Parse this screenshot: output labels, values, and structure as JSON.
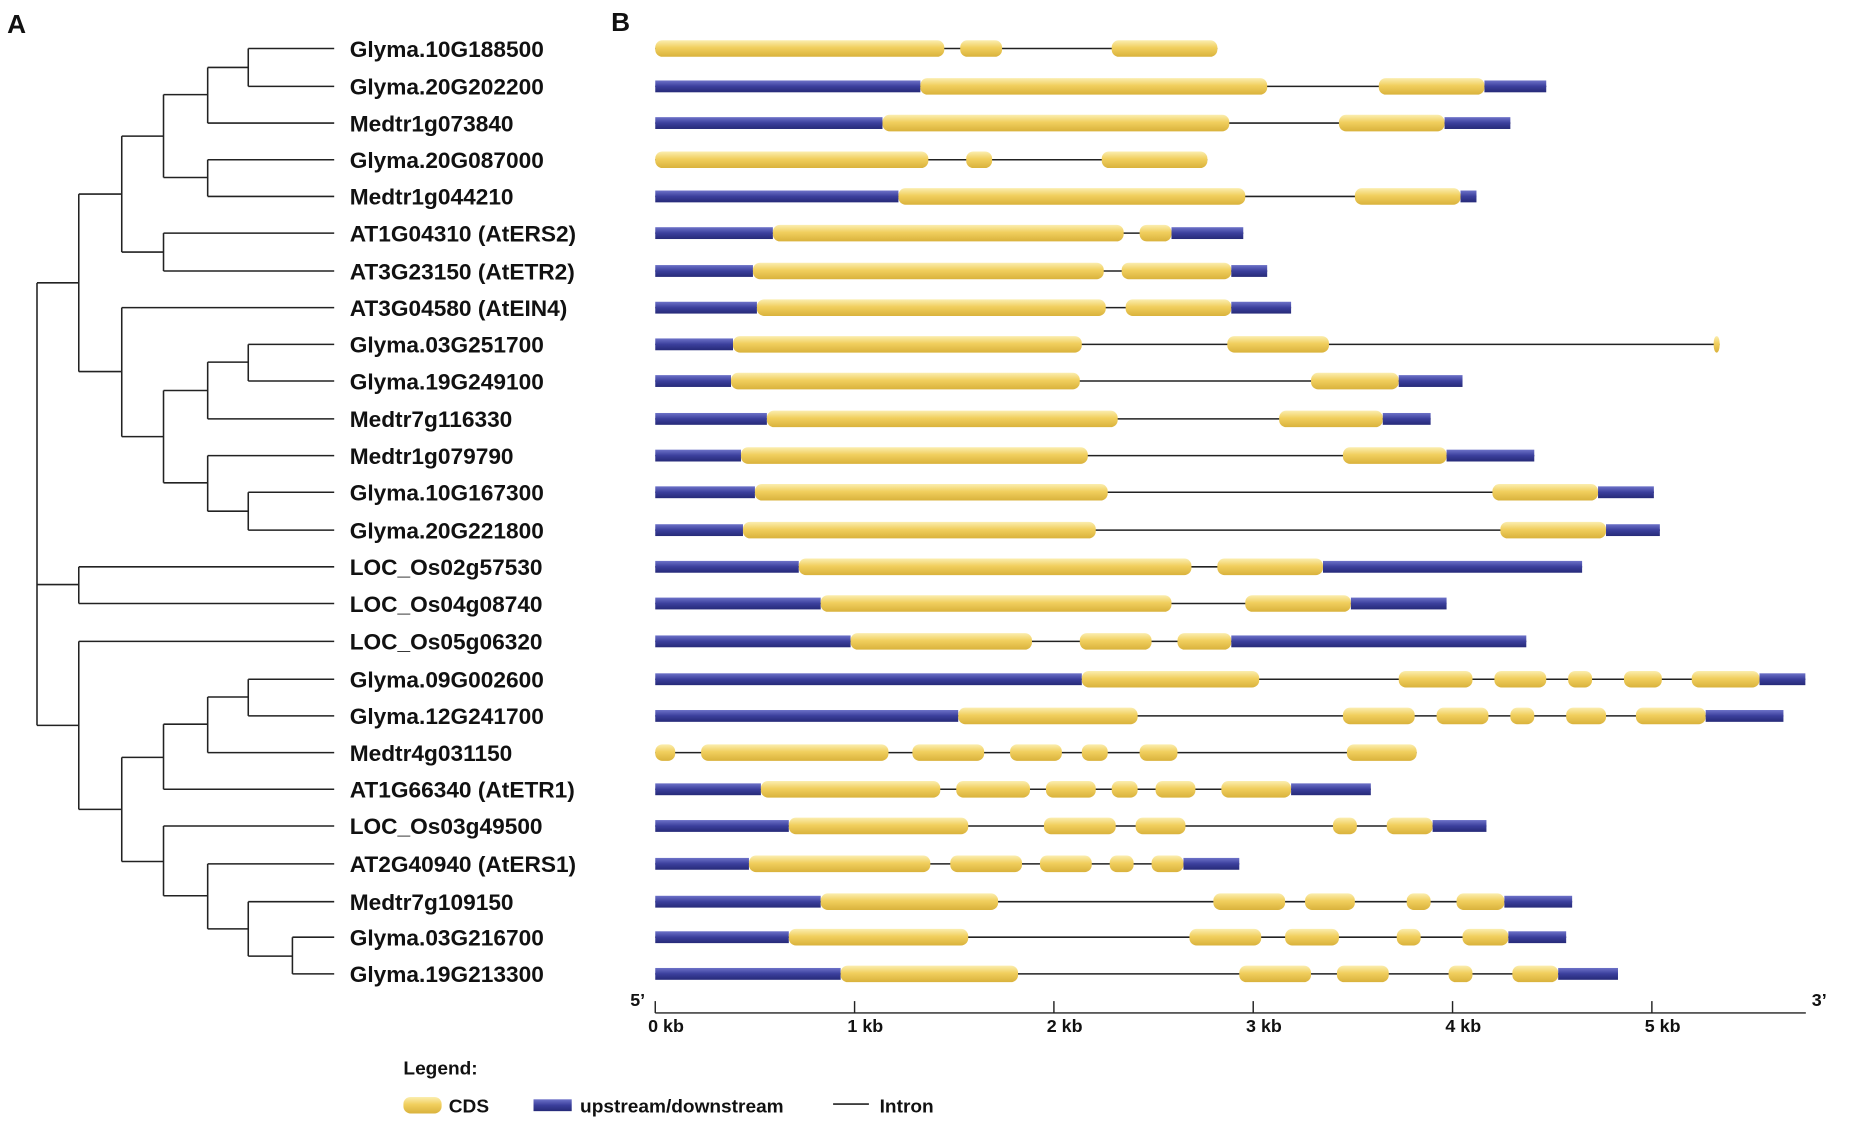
{
  "panels": {
    "a": "A",
    "b": "B"
  },
  "colors": {
    "cds": "#f1cf5e",
    "utr": "#3b3f9c",
    "intron": "#222222",
    "tree": "#222222"
  },
  "axis": {
    "five_prime": "5’",
    "three_prime": "3’",
    "max_kb": 5.77,
    "ticks": [
      {
        "value": 0,
        "label": "0 kb"
      },
      {
        "value": 1,
        "label": "1 kb"
      },
      {
        "value": 2,
        "label": "2 kb"
      },
      {
        "value": 3,
        "label": "3 kb"
      },
      {
        "value": 4,
        "label": "4 kb"
      },
      {
        "value": 5,
        "label": "5 kb"
      }
    ]
  },
  "legend": {
    "title": "Legend:",
    "cds": "CDS",
    "utr": "upstream/downstream",
    "intron": "Intron"
  },
  "genes": [
    {
      "name": "Glyma.10G188500",
      "segments": [
        [
          "C",
          0,
          1.45
        ],
        [
          "C",
          1.53,
          1.74
        ],
        [
          "C",
          2.29,
          2.82
        ]
      ]
    },
    {
      "name": "Glyma.20G202200",
      "segments": [
        [
          "U",
          0,
          1.33
        ],
        [
          "C",
          1.33,
          3.07
        ],
        [
          "C",
          3.63,
          4.16
        ],
        [
          "U",
          4.16,
          4.47
        ]
      ]
    },
    {
      "name": "Medtr1g073840",
      "segments": [
        [
          "U",
          0,
          1.14
        ],
        [
          "C",
          1.14,
          2.88
        ],
        [
          "C",
          3.43,
          3.96
        ],
        [
          "U",
          3.96,
          4.29
        ]
      ]
    },
    {
      "name": "Glyma.20G087000",
      "segments": [
        [
          "C",
          0,
          1.37
        ],
        [
          "C",
          1.56,
          1.69
        ],
        [
          "C",
          2.24,
          2.77
        ]
      ]
    },
    {
      "name": "Medtr1g044210",
      "segments": [
        [
          "U",
          0,
          1.22
        ],
        [
          "C",
          1.22,
          2.96
        ],
        [
          "C",
          3.51,
          4.04
        ],
        [
          "U",
          4.04,
          4.12
        ]
      ]
    },
    {
      "name": "AT1G04310  (AtERS2)",
      "segments": [
        [
          "U",
          0,
          0.59
        ],
        [
          "C",
          0.59,
          2.35
        ],
        [
          "C",
          2.43,
          2.59
        ],
        [
          "U",
          2.59,
          2.95
        ]
      ]
    },
    {
      "name": "AT3G23150  (AtETR2)",
      "segments": [
        [
          "U",
          0,
          0.49
        ],
        [
          "C",
          0.49,
          2.25
        ],
        [
          "C",
          2.34,
          2.89
        ],
        [
          "U",
          2.89,
          3.07
        ]
      ]
    },
    {
      "name": "AT3G04580  (AtEIN4)",
      "segments": [
        [
          "U",
          0,
          0.51
        ],
        [
          "C",
          0.51,
          2.26
        ],
        [
          "C",
          2.36,
          2.89
        ],
        [
          "U",
          2.89,
          3.19
        ]
      ]
    },
    {
      "name": "Glyma.03G251700",
      "segments": [
        [
          "U",
          0,
          0.39
        ],
        [
          "C",
          0.39,
          2.14
        ],
        [
          "C",
          2.87,
          3.38
        ],
        [
          "C",
          5.31,
          5.34
        ]
      ]
    },
    {
      "name": "Glyma.19G249100",
      "segments": [
        [
          "U",
          0,
          0.38
        ],
        [
          "C",
          0.38,
          2.13
        ],
        [
          "C",
          3.29,
          3.73
        ],
        [
          "U",
          3.73,
          4.05
        ]
      ]
    },
    {
      "name": "Medtr7g116330",
      "segments": [
        [
          "U",
          0,
          0.56
        ],
        [
          "C",
          0.56,
          2.32
        ],
        [
          "C",
          3.13,
          3.65
        ],
        [
          "U",
          3.65,
          3.89
        ]
      ]
    },
    {
      "name": "Medtr1g079790",
      "segments": [
        [
          "U",
          0,
          0.43
        ],
        [
          "C",
          0.43,
          2.17
        ],
        [
          "C",
          3.45,
          3.97
        ],
        [
          "U",
          3.97,
          4.41
        ]
      ]
    },
    {
      "name": "Glyma.10G167300",
      "segments": [
        [
          "U",
          0,
          0.5
        ],
        [
          "C",
          0.5,
          2.27
        ],
        [
          "C",
          4.2,
          4.73
        ],
        [
          "U",
          4.73,
          5.01
        ]
      ]
    },
    {
      "name": "Glyma.20G221800",
      "segments": [
        [
          "U",
          0,
          0.44
        ],
        [
          "C",
          0.44,
          2.21
        ],
        [
          "C",
          4.24,
          4.77
        ],
        [
          "U",
          4.77,
          5.04
        ]
      ]
    },
    {
      "name": "LOC_Os02g57530",
      "segments": [
        [
          "U",
          0,
          0.72
        ],
        [
          "C",
          0.72,
          2.69
        ],
        [
          "C",
          2.82,
          3.35
        ],
        [
          "U",
          3.35,
          4.65
        ]
      ]
    },
    {
      "name": "LOC_Os04g08740",
      "segments": [
        [
          "U",
          0,
          0.83
        ],
        [
          "C",
          0.83,
          2.59
        ],
        [
          "C",
          2.96,
          3.49
        ],
        [
          "U",
          3.49,
          3.97
        ]
      ]
    },
    {
      "name": "LOC_Os05g06320",
      "segments": [
        [
          "U",
          0,
          0.98
        ],
        [
          "C",
          0.98,
          1.89
        ],
        [
          "C",
          2.13,
          2.49
        ],
        [
          "C",
          2.62,
          2.89
        ],
        [
          "U",
          2.89,
          4.37
        ]
      ]
    },
    {
      "name": "Glyma.09G002600",
      "segments": [
        [
          "U",
          0,
          2.14
        ],
        [
          "C",
          2.14,
          3.03
        ],
        [
          "C",
          3.73,
          4.1
        ],
        [
          "C",
          4.21,
          4.47
        ],
        [
          "C",
          4.58,
          4.7
        ],
        [
          "C",
          4.86,
          5.05
        ],
        [
          "C",
          5.2,
          5.54
        ],
        [
          "U",
          5.54,
          5.77
        ]
      ]
    },
    {
      "name": "Glyma.12G241700",
      "segments": [
        [
          "U",
          0,
          1.52
        ],
        [
          "C",
          1.52,
          2.42
        ],
        [
          "C",
          3.45,
          3.81
        ],
        [
          "C",
          3.92,
          4.18
        ],
        [
          "C",
          4.29,
          4.41
        ],
        [
          "C",
          4.57,
          4.77
        ],
        [
          "C",
          4.92,
          5.27
        ],
        [
          "U",
          5.27,
          5.66
        ]
      ]
    },
    {
      "name": "Medtr4g031150",
      "segments": [
        [
          "C",
          0,
          0.1
        ],
        [
          "C",
          0.23,
          1.17
        ],
        [
          "C",
          1.29,
          1.65
        ],
        [
          "C",
          1.78,
          2.04
        ],
        [
          "C",
          2.14,
          2.27
        ],
        [
          "C",
          2.43,
          2.62
        ],
        [
          "C",
          3.47,
          3.82
        ]
      ]
    },
    {
      "name": "AT1G66340  (AtETR1)",
      "segments": [
        [
          "U",
          0,
          0.53
        ],
        [
          "C",
          0.53,
          1.43
        ],
        [
          "C",
          1.51,
          1.88
        ],
        [
          "C",
          1.96,
          2.21
        ],
        [
          "C",
          2.29,
          2.42
        ],
        [
          "C",
          2.51,
          2.71
        ],
        [
          "C",
          2.84,
          3.19
        ],
        [
          "U",
          3.19,
          3.59
        ]
      ]
    },
    {
      "name": "LOC_Os03g49500",
      "segments": [
        [
          "U",
          0,
          0.67
        ],
        [
          "C",
          0.67,
          1.57
        ],
        [
          "C",
          1.95,
          2.31
        ],
        [
          "C",
          2.41,
          2.66
        ],
        [
          "C",
          3.4,
          3.52
        ],
        [
          "C",
          3.67,
          3.9
        ],
        [
          "U",
          3.9,
          4.17
        ]
      ]
    },
    {
      "name": "AT2G40940  (AtERS1)",
      "segments": [
        [
          "U",
          0,
          0.47
        ],
        [
          "C",
          0.47,
          1.38
        ],
        [
          "C",
          1.48,
          1.84
        ],
        [
          "C",
          1.93,
          2.19
        ],
        [
          "C",
          2.28,
          2.4
        ],
        [
          "C",
          2.49,
          2.65
        ],
        [
          "U",
          2.65,
          2.93
        ]
      ]
    },
    {
      "name": "Medtr7g109150",
      "segments": [
        [
          "U",
          0,
          0.83
        ],
        [
          "C",
          0.83,
          1.72
        ],
        [
          "C",
          2.8,
          3.16
        ],
        [
          "C",
          3.26,
          3.51
        ],
        [
          "C",
          3.77,
          3.89
        ],
        [
          "C",
          4.02,
          4.26
        ],
        [
          "U",
          4.26,
          4.6
        ]
      ]
    },
    {
      "name": "Glyma.03G216700",
      "segments": [
        [
          "U",
          0,
          0.67
        ],
        [
          "C",
          0.67,
          1.57
        ],
        [
          "C",
          2.68,
          3.04
        ],
        [
          "C",
          3.16,
          3.43
        ],
        [
          "C",
          3.72,
          3.84
        ],
        [
          "C",
          4.05,
          4.28
        ],
        [
          "U",
          4.28,
          4.57
        ]
      ]
    },
    {
      "name": "Glyma.19G213300",
      "segments": [
        [
          "U",
          0,
          0.93
        ],
        [
          "C",
          0.93,
          1.82
        ],
        [
          "C",
          2.93,
          3.29
        ],
        [
          "C",
          3.42,
          3.68
        ],
        [
          "C",
          3.98,
          4.1
        ],
        [
          "C",
          4.3,
          4.53
        ],
        [
          "U",
          4.53,
          4.83
        ]
      ]
    }
  ]
}
